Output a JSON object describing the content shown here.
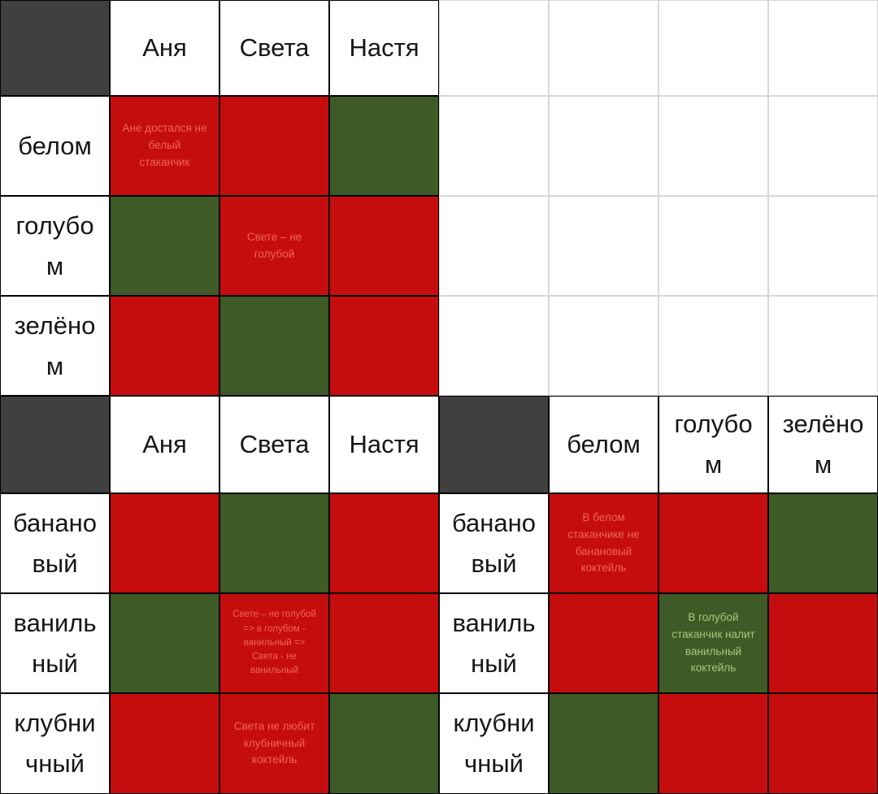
{
  "palette": {
    "cell_no_background": "#c60d0d",
    "cell_yes_background": "#3e5a26",
    "corner_cell_background": "#404040",
    "note_text_on_red": "#f0654e",
    "note_text_on_green": "#a8c87e",
    "label_text": "#161616",
    "table_border": "#000000",
    "faint_grid_line": "#d8d8d8"
  },
  "top_table": {
    "col_headers": [
      "Аня",
      "Света",
      "Настя"
    ],
    "rows": [
      {
        "label": "белом",
        "cells": [
          {
            "state": "no",
            "note": "Ане достался не\nбелый\nстаканчик"
          },
          {
            "state": "no"
          },
          {
            "state": "yes"
          }
        ]
      },
      {
        "label": "голубо\nм",
        "cells": [
          {
            "state": "yes"
          },
          {
            "state": "no",
            "note": "Свете – не\nголубой"
          },
          {
            "state": "no"
          }
        ]
      },
      {
        "label": "зелёно\nм",
        "cells": [
          {
            "state": "no"
          },
          {
            "state": "yes"
          },
          {
            "state": "no"
          }
        ]
      }
    ]
  },
  "bottom_left_table": {
    "col_headers": [
      "Аня",
      "Света",
      "Настя"
    ],
    "rows": [
      {
        "label": "банано\nвый",
        "cells": [
          {
            "state": "no"
          },
          {
            "state": "yes"
          },
          {
            "state": "no"
          }
        ]
      },
      {
        "label": "ваниль\nный",
        "cells": [
          {
            "state": "yes"
          },
          {
            "state": "no",
            "note": "Свете – не голубой\n=> в голубом -\nванильный =>\nСвета - не\nванильный"
          },
          {
            "state": "no"
          }
        ]
      },
      {
        "label": "клубни\nчный",
        "cells": [
          {
            "state": "no"
          },
          {
            "state": "no",
            "note": "Света не любит\nклубничный\nкоктейль"
          },
          {
            "state": "yes"
          }
        ]
      }
    ]
  },
  "bottom_right_table": {
    "col_headers": [
      "белом",
      "голубо\nм",
      "зелёно\nм"
    ],
    "rows": [
      {
        "label": "банано\nвый",
        "cells": [
          {
            "state": "no",
            "note": "В белом\nстаканчике не\nбанановый\nкоктейль"
          },
          {
            "state": "no"
          },
          {
            "state": "yes"
          }
        ]
      },
      {
        "label": "ваниль\nный",
        "cells": [
          {
            "state": "no"
          },
          {
            "state": "yes",
            "note": "В голубой\nстаканчик налит\nванильный\nкоктейль"
          },
          {
            "state": "no"
          }
        ]
      },
      {
        "label": "клубни\nчный",
        "cells": [
          {
            "state": "yes"
          },
          {
            "state": "no"
          },
          {
            "state": "no"
          }
        ]
      }
    ]
  }
}
